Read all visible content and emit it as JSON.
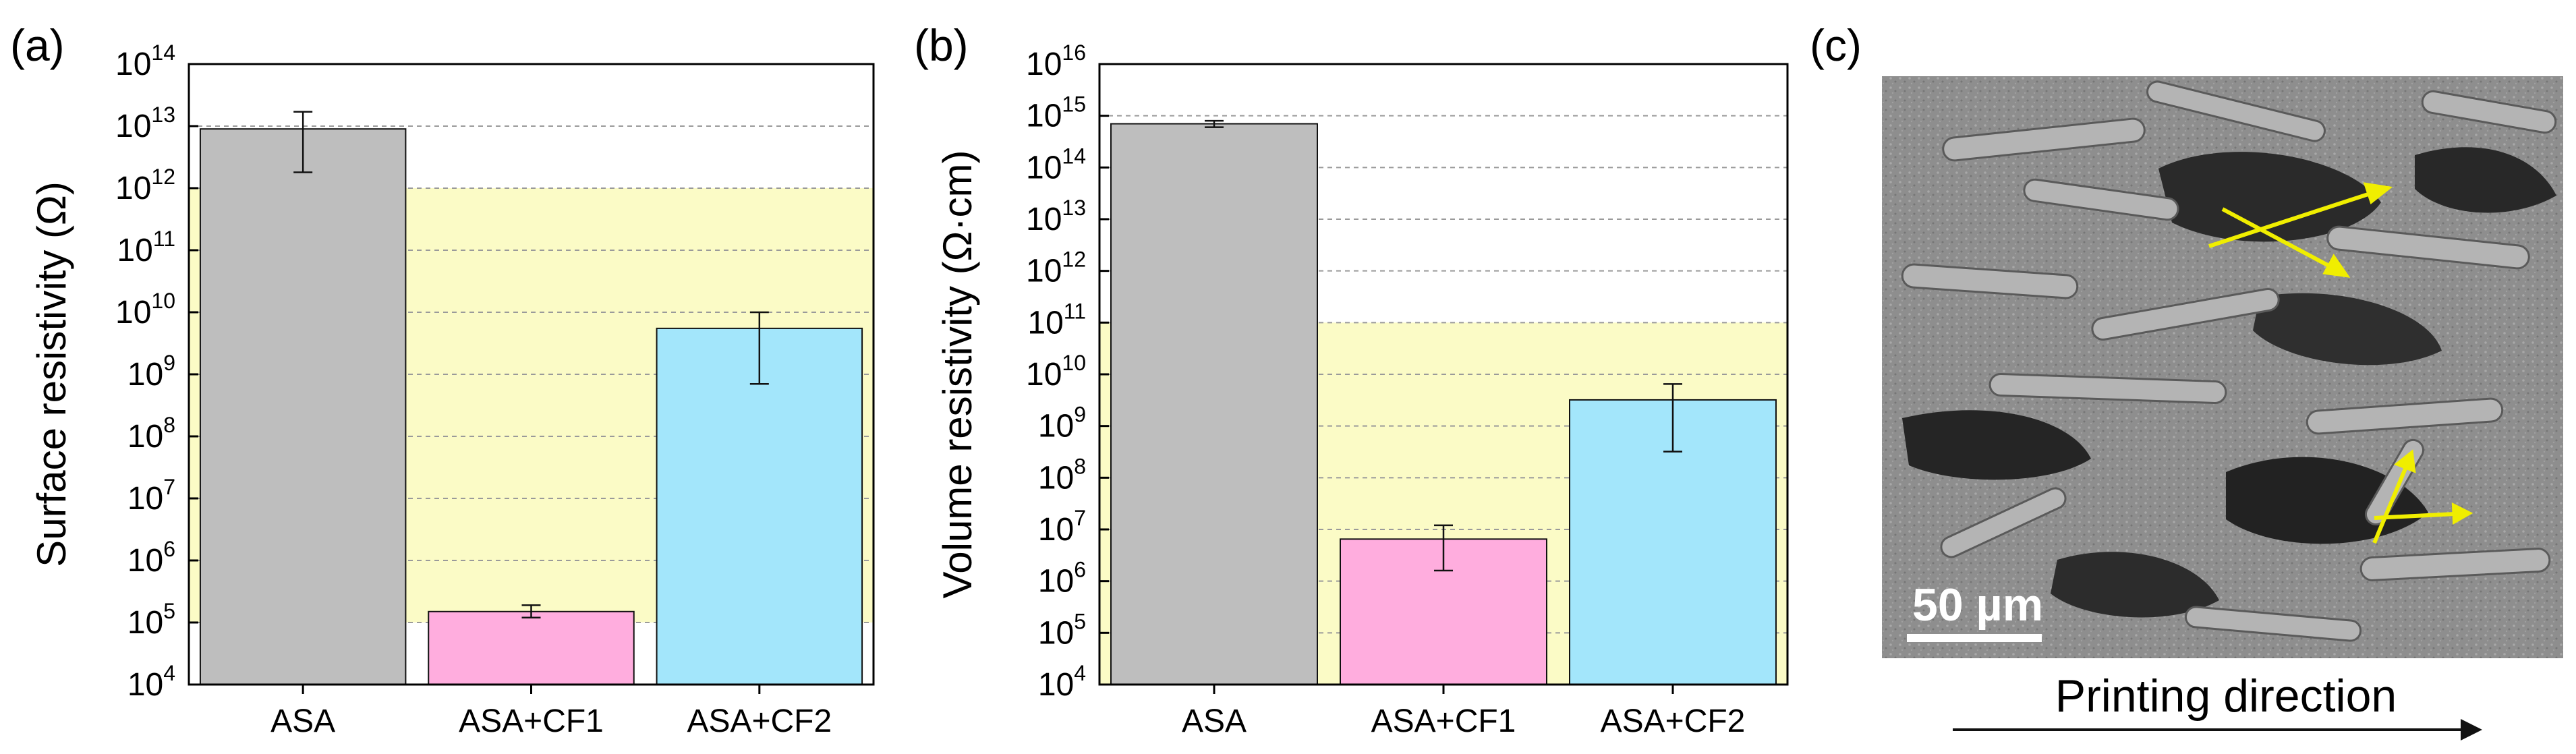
{
  "chart_data": [
    {
      "panel_label": "(a)",
      "type": "bar",
      "yscale": "log",
      "ylabel": "Surface resistivity (Ω)",
      "ylim_exp": [
        4,
        14
      ],
      "tick_base": "10",
      "tick_exponents": [
        "4",
        "5",
        "6",
        "7",
        "8",
        "9",
        "10",
        "11",
        "12",
        "13",
        "14"
      ],
      "categories": [
        "ASA",
        "ASA+CF1",
        "ASA+CF2"
      ],
      "values": [
        9000000000000.0,
        150000.0,
        5500000000.0
      ],
      "err_low": [
        1800000000000.0,
        120000.0,
        700000000.0
      ],
      "err_high": [
        17000000000000.0,
        190000.0,
        10000000000.0
      ],
      "highlight_band": [
        100000.0,
        1000000000000.0
      ],
      "grid": "dashed horizontal at each decade"
    },
    {
      "panel_label": "(b)",
      "type": "bar",
      "yscale": "log",
      "ylabel": "Volume resistivity (Ω·cm)",
      "ylim_exp": [
        4,
        16
      ],
      "tick_base": "10",
      "tick_exponents": [
        "4",
        "5",
        "6",
        "7",
        "8",
        "9",
        "10",
        "11",
        "12",
        "13",
        "14",
        "15",
        "16"
      ],
      "categories": [
        "ASA",
        "ASA+CF1",
        "ASA+CF2"
      ],
      "values": [
        700000000000000.0,
        6500000.0,
        3200000000.0
      ],
      "err_low": [
        600000000000000.0,
        1600000.0,
        320000000.0
      ],
      "err_high": [
        800000000000000.0,
        12000000.0,
        6500000000.0
      ],
      "highlight_band": [
        10000.0,
        100000000000.0
      ],
      "grid": "dashed horizontal at each decade"
    }
  ],
  "colors": {
    "bar_fills": [
      "#bebebe",
      "#ffadde",
      "#a3e6fb"
    ],
    "band": "#fbfbc6",
    "grid": "#9a9a9a",
    "arrow": "#f0ee00"
  },
  "sem_panel": {
    "label": "(c)",
    "scale_bar_text": "50 µm",
    "caption": "Printing direction"
  }
}
